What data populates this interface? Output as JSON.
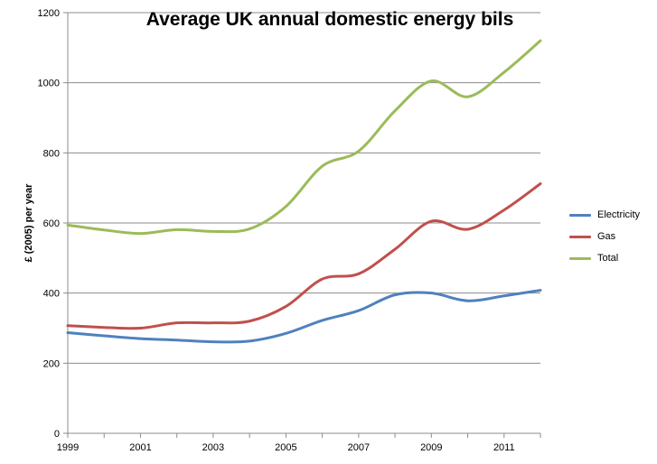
{
  "chart_data": {
    "type": "line",
    "title": "Average UK annual domestic energy bils",
    "xlabel": "",
    "ylabel": "£ (2005) per year",
    "x": [
      1999,
      2000,
      2001,
      2002,
      2003,
      2004,
      2005,
      2006,
      2007,
      2008,
      2009,
      2010,
      2011,
      2012
    ],
    "xlim": [
      1999,
      2012
    ],
    "ylim": [
      0,
      1200
    ],
    "xticks": [
      "1999",
      "2001",
      "2003",
      "2005",
      "2007",
      "2009",
      "2011"
    ],
    "yticks": [
      "0",
      "200",
      "400",
      "600",
      "800",
      "1000",
      "1200"
    ],
    "grid": "horizontal",
    "legend": "right",
    "series": [
      {
        "name": "Electricity",
        "color": "#4f81bd",
        "values": [
          287,
          278,
          270,
          266,
          261,
          263,
          285,
          322,
          350,
          395,
          400,
          378,
          392,
          408
        ]
      },
      {
        "name": "Gas",
        "color": "#c0504d",
        "values": [
          307,
          302,
          300,
          315,
          315,
          320,
          362,
          440,
          455,
          525,
          605,
          582,
          637,
          712
        ]
      },
      {
        "name": "Total",
        "color": "#9bbb59",
        "values": [
          594,
          580,
          570,
          581,
          576,
          583,
          647,
          762,
          805,
          920,
          1005,
          960,
          1030,
          1120
        ]
      }
    ]
  }
}
